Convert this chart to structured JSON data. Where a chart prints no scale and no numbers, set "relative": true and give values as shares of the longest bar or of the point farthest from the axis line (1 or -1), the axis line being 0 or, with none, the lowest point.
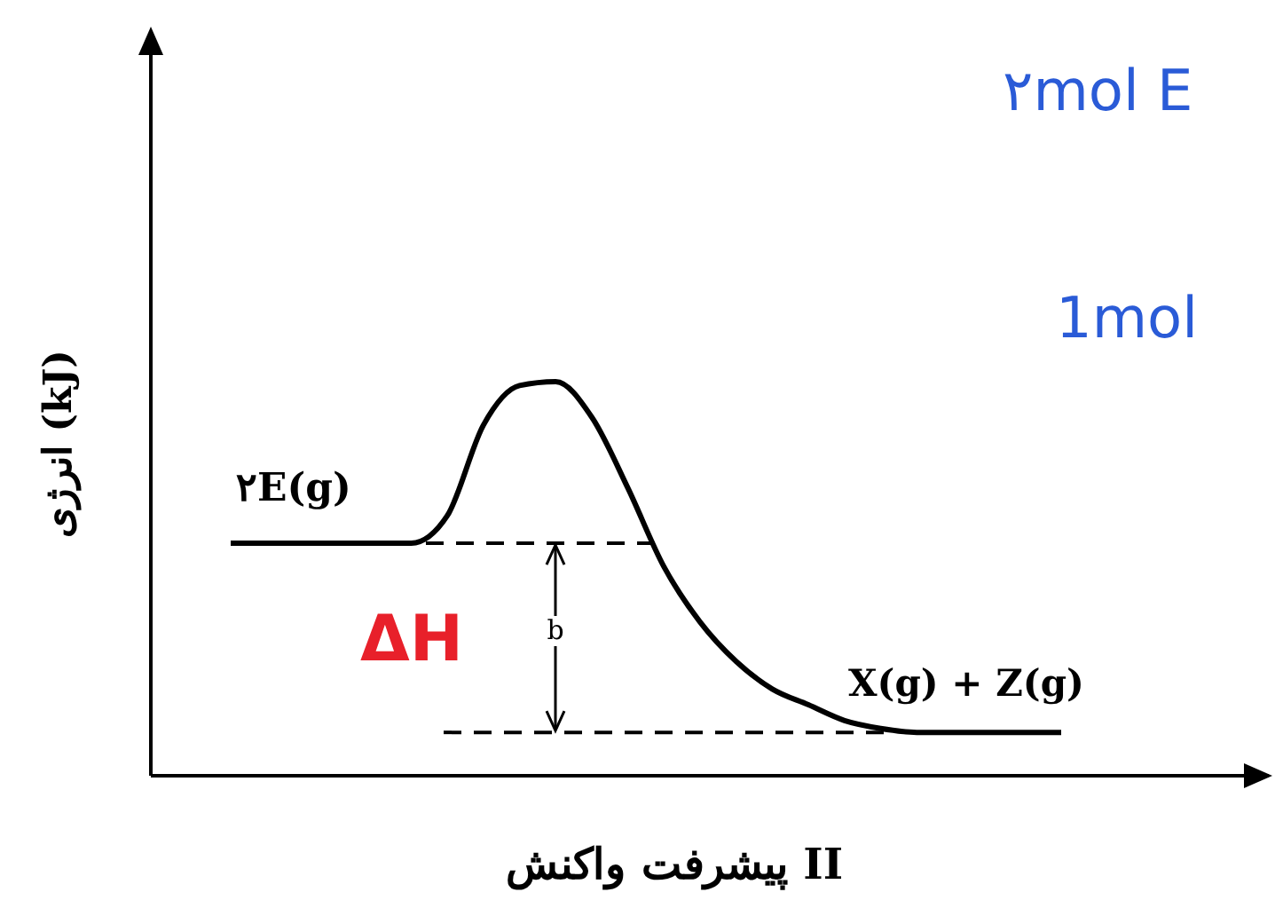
{
  "chart_data": {
    "type": "line",
    "relative": true,
    "xlabel": "پیشرفت واکنش II",
    "ylabel": "انرژی (kJ)",
    "categories": [
      null,
      null,
      null,
      null,
      null,
      null,
      null,
      null,
      null,
      null,
      null,
      null,
      null,
      null,
      null,
      null,
      null,
      null,
      null,
      null,
      null,
      null,
      null,
      null
    ],
    "series": [
      {
        "color": "#000000",
        "values": [
          0.59,
          0.59,
          0.59,
          0.59,
          0.59,
          0.59,
          0.66,
          0.89,
          0.99,
          1,
          0.91,
          0.73,
          0.53,
          0.39,
          0.29,
          0.22,
          0.18,
          0.14,
          0.12,
          0.11,
          0.11,
          0.11,
          0.11,
          0.11
        ]
      }
    ],
    "ref_lines": [
      {
        "axis": "y",
        "value": 0.59,
        "line_style": "dashed",
        "color": "#000000"
      },
      {
        "axis": "y",
        "value": 0.11,
        "line_style": "dashed",
        "color": "#000000"
      }
    ],
    "annotations": [
      "۲E(g)",
      "X(g) + Z(g)",
      "b",
      "ΔH",
      "۲mol E",
      "1mol"
    ],
    "marker": "none",
    "line_style": "solid"
  }
}
